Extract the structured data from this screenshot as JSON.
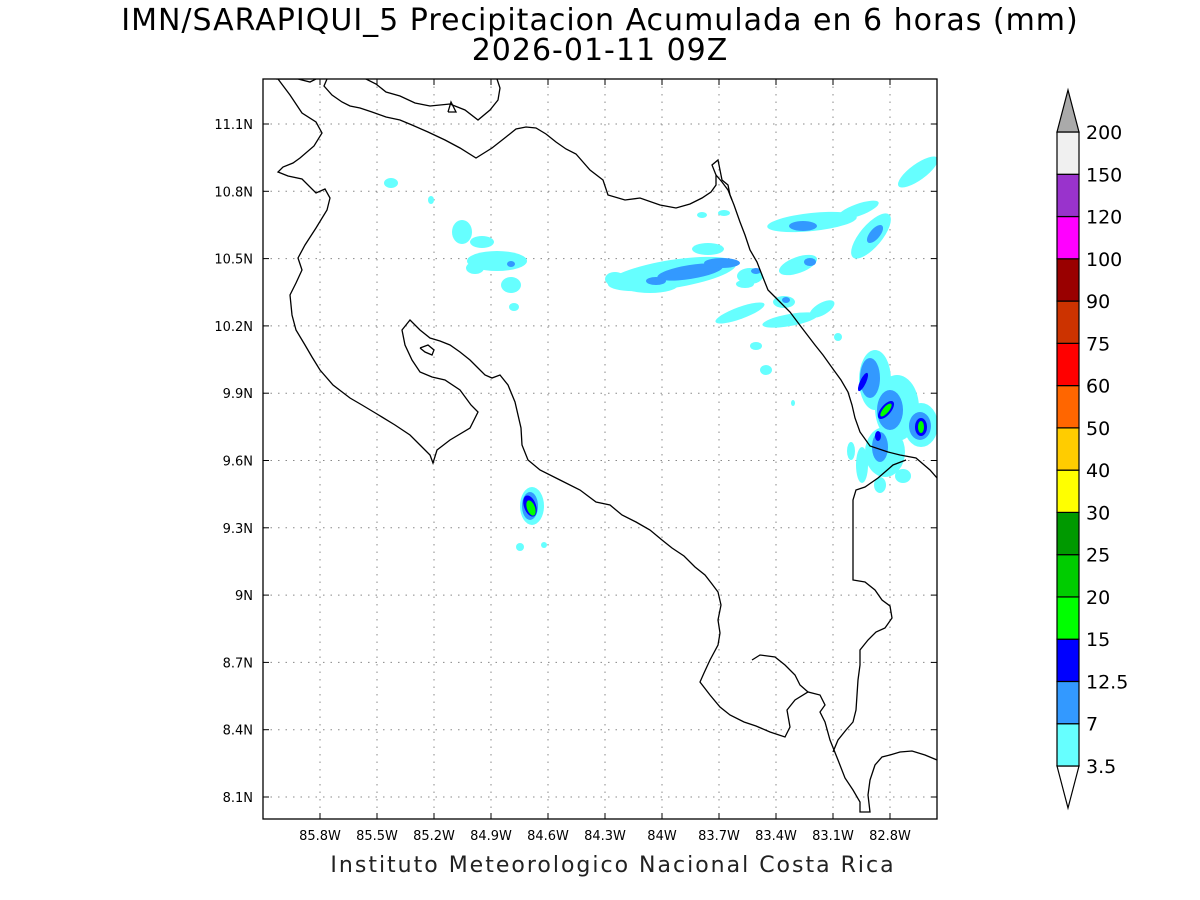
{
  "title": {
    "line1": "IMN/SARAPIQUI_5 Precipitacion Acumulada en 6 horas (mm)",
    "line2": "2026-01-11 09Z"
  },
  "axes": {
    "x_ticks": [
      "85.8W",
      "85.5W",
      "85.2W",
      "84.9W",
      "84.6W",
      "84.3W",
      "84W",
      "83.7W",
      "83.4W",
      "83.1W",
      "82.8W"
    ],
    "y_ticks": [
      "11.1N",
      "10.8N",
      "10.5N",
      "10.2N",
      "9.9N",
      "9.6N",
      "9.3N",
      "9N",
      "8.7N",
      "8.4N",
      "8.1N"
    ],
    "x_values": [
      -85.8,
      -85.5,
      -85.2,
      -84.9,
      -84.6,
      -84.3,
      -84.0,
      -83.7,
      -83.4,
      -83.1,
      -82.8
    ],
    "y_values": [
      11.1,
      10.8,
      10.5,
      10.2,
      9.9,
      9.6,
      9.3,
      9.0,
      8.7,
      8.4,
      8.1
    ],
    "grid": "dotted"
  },
  "colorbar": {
    "labels": [
      "3.5",
      "7",
      "12.5",
      "15",
      "20",
      "25",
      "30",
      "40",
      "50",
      "60",
      "75",
      "90",
      "100",
      "120",
      "150",
      "200"
    ],
    "colors": [
      "#ffffff",
      "#66ffff",
      "#3399ff",
      "#0000ff",
      "#00ff00",
      "#00cc00",
      "#009900",
      "#ffff00",
      "#ffcc00",
      "#ff6600",
      "#ff0000",
      "#cc3300",
      "#990000",
      "#ff00ff",
      "#9933cc",
      "#f0f0f0",
      "#aaaaaa"
    ],
    "units": "mm"
  },
  "credit": "Instituto Meteorologico Nacional Costa Rica",
  "precip_cells": [
    {
      "lon": -84.18,
      "lat": 10.41,
      "level": "7"
    },
    {
      "lon": -83.9,
      "lat": 10.44,
      "level": "7"
    },
    {
      "lon": -82.83,
      "lat": 9.82,
      "level": "20"
    },
    {
      "lon": -82.58,
      "lat": 9.76,
      "level": "20"
    },
    {
      "lon": -82.93,
      "lat": 9.96,
      "level": "15"
    },
    {
      "lon": -84.59,
      "lat": 9.39,
      "level": "20"
    },
    {
      "lon": -83.22,
      "lat": 10.64,
      "level": "7"
    },
    {
      "lon": -82.85,
      "lat": 10.6,
      "level": "7"
    },
    {
      "lon": -84.7,
      "lat": 10.49,
      "level": "7"
    }
  ]
}
